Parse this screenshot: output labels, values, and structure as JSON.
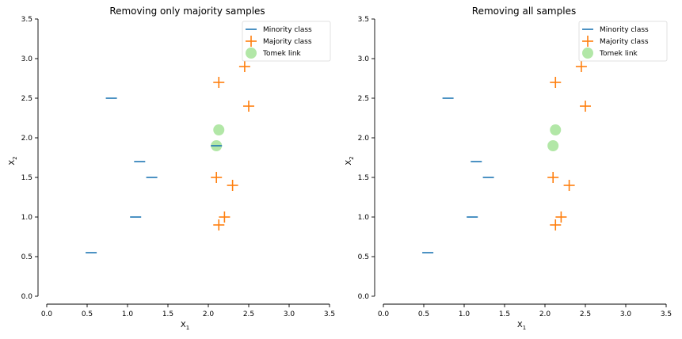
{
  "chart_data": [
    {
      "type": "scatter",
      "title": "Removing only majority samples",
      "xlabel": "X",
      "xlabel_sub": "1",
      "ylabel": "X",
      "ylabel_sub": "2",
      "xlim": [
        0.0,
        3.5
      ],
      "ylim": [
        0.0,
        3.5
      ],
      "xticks": [
        "0.0",
        "0.5",
        "1.0",
        "1.5",
        "2.0",
        "2.5",
        "3.0",
        "3.5"
      ],
      "yticks": [
        "0.0",
        "0.5",
        "1.0",
        "1.5",
        "2.0",
        "2.5",
        "3.0",
        "3.5"
      ],
      "grid": false,
      "legend_position": "top-right",
      "series": [
        {
          "name": "Minority class",
          "marker": "hline",
          "color": "#1f77b4",
          "points": [
            [
              0.55,
              0.55
            ],
            [
              0.8,
              2.5
            ],
            [
              1.1,
              1.0
            ],
            [
              1.15,
              1.7
            ],
            [
              1.3,
              1.5
            ],
            [
              2.1,
              1.9
            ]
          ]
        },
        {
          "name": "Majority class",
          "marker": "plus",
          "color": "#ff7f0e",
          "points": [
            [
              2.1,
              1.5
            ],
            [
              2.13,
              2.7
            ],
            [
              2.13,
              0.9
            ],
            [
              2.2,
              1.0
            ],
            [
              2.3,
              1.4
            ],
            [
              2.45,
              2.9
            ],
            [
              2.5,
              2.4
            ]
          ]
        },
        {
          "name": "Tomek link",
          "marker": "circle",
          "color": "#98df8a",
          "points": [
            [
              2.1,
              1.9
            ],
            [
              2.13,
              2.1
            ]
          ]
        }
      ]
    },
    {
      "type": "scatter",
      "title": "Removing all samples",
      "xlabel": "X",
      "xlabel_sub": "1",
      "ylabel": "X",
      "ylabel_sub": "2",
      "xlim": [
        0.0,
        3.5
      ],
      "ylim": [
        0.0,
        3.5
      ],
      "xticks": [
        "0.0",
        "0.5",
        "1.0",
        "1.5",
        "2.0",
        "2.5",
        "3.0",
        "3.5"
      ],
      "yticks": [
        "0.0",
        "0.5",
        "1.0",
        "1.5",
        "2.0",
        "2.5",
        "3.0",
        "3.5"
      ],
      "grid": false,
      "legend_position": "top-right",
      "series": [
        {
          "name": "Minority class",
          "marker": "hline",
          "color": "#1f77b4",
          "points": [
            [
              0.55,
              0.55
            ],
            [
              0.8,
              2.5
            ],
            [
              1.1,
              1.0
            ],
            [
              1.15,
              1.7
            ],
            [
              1.3,
              1.5
            ]
          ]
        },
        {
          "name": "Majority class",
          "marker": "plus",
          "color": "#ff7f0e",
          "points": [
            [
              2.1,
              1.5
            ],
            [
              2.13,
              2.7
            ],
            [
              2.13,
              0.9
            ],
            [
              2.2,
              1.0
            ],
            [
              2.3,
              1.4
            ],
            [
              2.45,
              2.9
            ],
            [
              2.5,
              2.4
            ]
          ]
        },
        {
          "name": "Tomek link",
          "marker": "circle",
          "color": "#98df8a",
          "points": [
            [
              2.1,
              1.9
            ],
            [
              2.13,
              2.1
            ]
          ]
        }
      ]
    }
  ]
}
